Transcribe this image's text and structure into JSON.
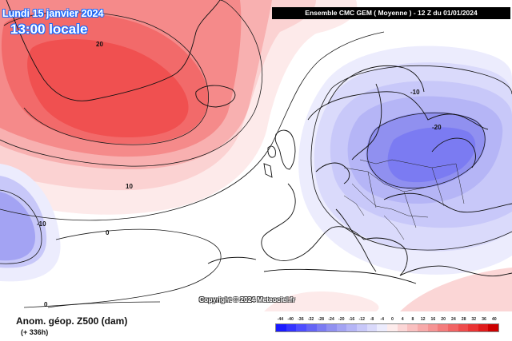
{
  "header": {
    "date": "Lundi 15 janvier 2024",
    "time": "13:00 locale",
    "model": "Ensemble CMC GEM  ( Moyenne )   -  12 Z du 01/01/2024"
  },
  "map": {
    "contour_labels": [
      {
        "id": "neg20",
        "text": "-20"
      },
      {
        "id": "neg10-europe",
        "text": "-10"
      },
      {
        "id": "neg10-west",
        "text": "-10"
      },
      {
        "id": "pos20",
        "text": "20"
      },
      {
        "id": "pos10",
        "text": "10"
      },
      {
        "id": "zero-mid",
        "text": "0"
      },
      {
        "id": "zero-low",
        "text": "0"
      }
    ],
    "copyright": "Copyright © 2024 Meteociel.fr"
  },
  "footer": {
    "title": "Anom. géop. Z500 (dam)",
    "lead": "(+ 336h)"
  },
  "legend": {
    "labels": [
      "-44",
      "-40",
      "-36",
      "-32",
      "-28",
      "-24",
      "-20",
      "-16",
      "-12",
      "-8",
      "-4",
      "0",
      "4",
      "8",
      "12",
      "16",
      "20",
      "24",
      "28",
      "32",
      "36",
      "40"
    ],
    "colors": [
      "#1a1aff",
      "#3333ff",
      "#4d4dff",
      "#6464f5",
      "#7b7bf2",
      "#9090f0",
      "#a3a3f3",
      "#b5b5f6",
      "#c8c8f9",
      "#dadafb",
      "#ececfd",
      "#fdecec",
      "#fbd6d6",
      "#f9c0c0",
      "#f7aaaa",
      "#f59494",
      "#f37c7c",
      "#f16464",
      "#ee4c4c",
      "#ea3434",
      "#e01c1c",
      "#cc0000"
    ]
  },
  "colors": {
    "warm_core": "#f05050",
    "cold_core": "#6f78ea",
    "banner_bg": "#000000"
  }
}
